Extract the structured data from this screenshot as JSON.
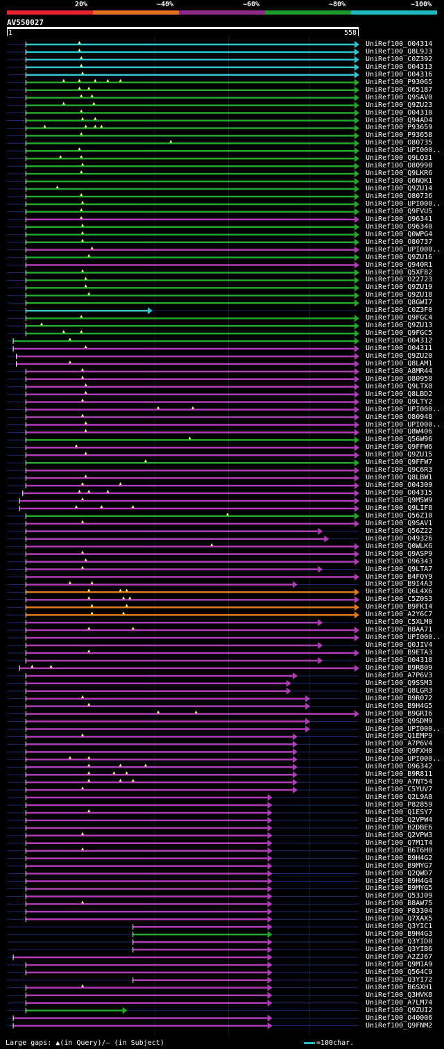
{
  "legend": {
    "segments": [
      {
        "label": "20%",
        "color": "#e8242e"
      },
      {
        "label": "~40%",
        "color": "#e0701f"
      },
      {
        "label": "~60%",
        "color": "#8e2a8c"
      },
      {
        "label": "~80%",
        "color": "#1f9a28"
      },
      {
        "label": "~100%",
        "color": "#1fb8c0"
      }
    ]
  },
  "query": {
    "name": "AV550027",
    "start": "1",
    "end": "558",
    "length": 558
  },
  "colors": {
    "cyan": "#2ec4d0",
    "green": "#22a82a",
    "purple": "#b03cb8",
    "orange": "#e07a1a",
    "faint": "#1c2a6e",
    "marker": "#ffff80"
  },
  "hits": [
    {
      "name": "UniRef100_O04314",
      "c": "cyan",
      "s": 30,
      "e": 558,
      "gaps": [
        115
      ]
    },
    {
      "name": "UniRef100_Q8L9J3",
      "c": "cyan",
      "s": 30,
      "e": 558,
      "gaps": [
        115
      ]
    },
    {
      "name": "UniRef100_C0Z392",
      "c": "cyan",
      "s": 30,
      "e": 558,
      "gaps": [
        118
      ]
    },
    {
      "name": "UniRef100_O04313",
      "c": "cyan",
      "s": 30,
      "e": 558,
      "gaps": [
        118
      ]
    },
    {
      "name": "UniRef100_O04316",
      "c": "cyan",
      "s": 30,
      "e": 558,
      "gaps": [
        120
      ]
    },
    {
      "name": "UniRef100_P93065",
      "c": "green",
      "s": 30,
      "e": 558,
      "gaps": [
        90,
        115,
        140,
        160,
        180
      ]
    },
    {
      "name": "UniRef100_O65187",
      "c": "green",
      "s": 30,
      "e": 558,
      "gaps": [
        115,
        130
      ]
    },
    {
      "name": "UniRef100_Q9SAV0",
      "c": "green",
      "s": 30,
      "e": 558,
      "gaps": [
        118,
        135
      ]
    },
    {
      "name": "UniRef100_Q9ZU23",
      "c": "green",
      "s": 30,
      "e": 558,
      "gaps": [
        90,
        138
      ]
    },
    {
      "name": "UniRef100_O04310",
      "c": "green",
      "s": 30,
      "e": 558,
      "gaps": [
        118
      ]
    },
    {
      "name": "UniRef100_Q94AD4",
      "c": "green",
      "s": 30,
      "e": 558,
      "gaps": [
        120,
        140
      ]
    },
    {
      "name": "UniRef100_P93659",
      "c": "green",
      "s": 30,
      "e": 558,
      "gaps": [
        60,
        125,
        140,
        150
      ]
    },
    {
      "name": "UniRef100_P93658",
      "c": "green",
      "s": 30,
      "e": 558,
      "gaps": [
        118
      ]
    },
    {
      "name": "UniRef100_O80735",
      "c": "green",
      "s": 30,
      "e": 558,
      "gaps": [
        260
      ]
    },
    {
      "name": "UniRef100_UPI000..",
      "c": "green",
      "s": 30,
      "e": 558,
      "gaps": [
        115
      ]
    },
    {
      "name": "UniRef100_Q9LQ31",
      "c": "green",
      "s": 30,
      "e": 558,
      "gaps": [
        85,
        118
      ]
    },
    {
      "name": "UniRef100_O80998",
      "c": "green",
      "s": 30,
      "e": 558,
      "gaps": [
        120
      ]
    },
    {
      "name": "UniRef100_Q9LKR6",
      "c": "green",
      "s": 30,
      "e": 558,
      "gaps": [
        118
      ]
    },
    {
      "name": "UniRef100_Q6NQK1",
      "c": "green",
      "s": 30,
      "e": 558,
      "gaps": []
    },
    {
      "name": "UniRef100_Q9ZU14",
      "c": "green",
      "s": 30,
      "e": 558,
      "gaps": [
        80
      ]
    },
    {
      "name": "UniRef100_O80736",
      "c": "green",
      "s": 30,
      "e": 558,
      "gaps": [
        118
      ]
    },
    {
      "name": "UniRef100_UPI000..",
      "c": "green",
      "s": 30,
      "e": 558,
      "gaps": [
        120
      ]
    },
    {
      "name": "UniRef100_Q9FVU5",
      "c": "green",
      "s": 30,
      "e": 558,
      "gaps": [
        118
      ]
    },
    {
      "name": "UniRef100_O96341",
      "c": "purple",
      "s": 30,
      "e": 558,
      "gaps": [
        118
      ]
    },
    {
      "name": "UniRef100_O96340",
      "c": "green",
      "s": 30,
      "e": 558,
      "gaps": [
        120
      ]
    },
    {
      "name": "UniRef100_Q0WPG4",
      "c": "green",
      "s": 30,
      "e": 558,
      "gaps": [
        120
      ]
    },
    {
      "name": "UniRef100_O80737",
      "c": "green",
      "s": 30,
      "e": 558,
      "gaps": [
        120
      ]
    },
    {
      "name": "UniRef100_UPI000..",
      "c": "purple",
      "s": 30,
      "e": 558,
      "gaps": [
        135
      ]
    },
    {
      "name": "UniRef100_Q9ZU16",
      "c": "green",
      "s": 30,
      "e": 558,
      "gaps": [
        130
      ]
    },
    {
      "name": "UniRef100_Q940R1",
      "c": "purple",
      "s": 30,
      "e": 558,
      "gaps": []
    },
    {
      "name": "UniRef100_Q5XF82",
      "c": "green",
      "s": 30,
      "e": 558,
      "gaps": [
        120
      ]
    },
    {
      "name": "UniRef100_O22723",
      "c": "green",
      "s": 30,
      "e": 558,
      "gaps": [
        125
      ]
    },
    {
      "name": "UniRef100_Q9ZU19",
      "c": "green",
      "s": 30,
      "e": 558,
      "gaps": [
        125
      ]
    },
    {
      "name": "UniRef100_Q9ZU18",
      "c": "green",
      "s": 30,
      "e": 558,
      "gaps": [
        130
      ]
    },
    {
      "name": "UniRef100_Q8GWI7",
      "c": "green",
      "s": 30,
      "e": 558,
      "gaps": []
    },
    {
      "name": "UniRef100_C0Z3F0",
      "c": "cyan",
      "s": 30,
      "e": 230,
      "gaps": []
    },
    {
      "name": "UniRef100_Q9FGC4",
      "c": "green",
      "s": 30,
      "e": 558,
      "gaps": [
        118
      ]
    },
    {
      "name": "UniRef100_Q9ZU13",
      "c": "green",
      "s": 30,
      "e": 558,
      "gaps": [
        55
      ]
    },
    {
      "name": "UniRef100_Q9FGC5",
      "c": "green",
      "s": 30,
      "e": 558,
      "gaps": [
        90,
        118
      ]
    },
    {
      "name": "UniRef100_O04312",
      "c": "green",
      "s": 10,
      "e": 558,
      "gaps": [
        100
      ]
    },
    {
      "name": "UniRef100_O04311",
      "c": "purple",
      "s": 10,
      "e": 558,
      "gaps": [
        125
      ]
    },
    {
      "name": "UniRef100_Q9ZU20",
      "c": "purple",
      "s": 15,
      "e": 558,
      "gaps": []
    },
    {
      "name": "UniRef100_Q8LAM1",
      "c": "purple",
      "s": 15,
      "e": 558,
      "gaps": [
        100
      ]
    },
    {
      "name": "UniRef100_A8MR44",
      "c": "purple",
      "s": 30,
      "e": 558,
      "gaps": [
        120
      ]
    },
    {
      "name": "UniRef100_O80950",
      "c": "purple",
      "s": 30,
      "e": 558,
      "gaps": [
        120
      ]
    },
    {
      "name": "UniRef100_Q9LTX8",
      "c": "purple",
      "s": 30,
      "e": 558,
      "gaps": [
        125
      ]
    },
    {
      "name": "UniRef100_Q8LBD2",
      "c": "purple",
      "s": 30,
      "e": 558,
      "gaps": [
        125
      ]
    },
    {
      "name": "UniRef100_Q9LTY2",
      "c": "purple",
      "s": 30,
      "e": 558,
      "gaps": [
        120
      ]
    },
    {
      "name": "UniRef100_UPI000..",
      "c": "purple",
      "s": 30,
      "e": 558,
      "gaps": [
        240,
        295
      ]
    },
    {
      "name": "UniRef100_O80948",
      "c": "purple",
      "s": 30,
      "e": 558,
      "gaps": [
        120
      ]
    },
    {
      "name": "UniRef100_UPI000..",
      "c": "purple",
      "s": 30,
      "e": 558,
      "gaps": [
        125
      ]
    },
    {
      "name": "UniRef100_Q8W406",
      "c": "purple",
      "s": 30,
      "e": 558,
      "gaps": [
        125
      ]
    },
    {
      "name": "UniRef100_Q56W96",
      "c": "green",
      "s": 30,
      "e": 558,
      "gaps": [
        290
      ]
    },
    {
      "name": "UniRef100_Q9FFW6",
      "c": "purple",
      "s": 30,
      "e": 558,
      "gaps": [
        110
      ]
    },
    {
      "name": "UniRef100_Q9ZU15",
      "c": "purple",
      "s": 30,
      "e": 558,
      "gaps": [
        125
      ]
    },
    {
      "name": "UniRef100_Q9FFW7",
      "c": "green",
      "s": 30,
      "e": 558,
      "gaps": [
        220
      ]
    },
    {
      "name": "UniRef100_Q9C6R3",
      "c": "purple",
      "s": 30,
      "e": 558,
      "gaps": []
    },
    {
      "name": "UniRef100_Q8LBW1",
      "c": "purple",
      "s": 30,
      "e": 558,
      "gaps": [
        125
      ]
    },
    {
      "name": "UniRef100_O04309",
      "c": "purple",
      "s": 30,
      "e": 558,
      "gaps": [
        120,
        180
      ]
    },
    {
      "name": "UniRef100_O04315",
      "c": "purple",
      "s": 25,
      "e": 558,
      "gaps": [
        115,
        130,
        160
      ]
    },
    {
      "name": "UniRef100_Q9M5W9",
      "c": "purple",
      "s": 20,
      "e": 558,
      "gaps": [
        120
      ]
    },
    {
      "name": "UniRef100_Q9LIF8",
      "c": "purple",
      "s": 20,
      "e": 558,
      "gaps": [
        110,
        150,
        200
      ]
    },
    {
      "name": "UniRef100_Q56Z10",
      "c": "green",
      "s": 30,
      "e": 558,
      "gaps": [
        350
      ]
    },
    {
      "name": "UniRef100_Q9SAV1",
      "c": "purple",
      "s": 30,
      "e": 558,
      "gaps": [
        120
      ]
    },
    {
      "name": "UniRef100_Q56Z22",
      "c": "purple",
      "s": 30,
      "e": 500,
      "gaps": []
    },
    {
      "name": "UniRef100_O49326",
      "c": "purple",
      "s": 30,
      "e": 510,
      "gaps": []
    },
    {
      "name": "UniRef100_Q0WLK6",
      "c": "purple",
      "s": 30,
      "e": 558,
      "gaps": [
        325
      ]
    },
    {
      "name": "UniRef100_Q9ASP9",
      "c": "purple",
      "s": 30,
      "e": 558,
      "gaps": [
        120
      ]
    },
    {
      "name": "UniRef100_O96343",
      "c": "purple",
      "s": 30,
      "e": 558,
      "gaps": [
        125
      ]
    },
    {
      "name": "UniRef100_Q9LTA7",
      "c": "purple",
      "s": 30,
      "e": 500,
      "gaps": [
        120
      ]
    },
    {
      "name": "UniRef100_B4FQY9",
      "c": "purple",
      "s": 30,
      "e": 558,
      "gaps": []
    },
    {
      "name": "UniRef100_B9I4A3",
      "c": "purple",
      "s": 30,
      "e": 460,
      "gaps": [
        100,
        135
      ]
    },
    {
      "name": "UniRef100_Q6L4X6",
      "c": "orange",
      "s": 30,
      "e": 558,
      "gaps": [
        130,
        180,
        190
      ]
    },
    {
      "name": "UniRef100_C5Z0S3",
      "c": "purple",
      "s": 30,
      "e": 558,
      "gaps": [
        130,
        185,
        195
      ]
    },
    {
      "name": "UniRef100_B9FKI4",
      "c": "orange",
      "s": 30,
      "e": 558,
      "gaps": [
        135,
        190
      ]
    },
    {
      "name": "UniRef100_A2Y6C7",
      "c": "orange",
      "s": 30,
      "e": 558,
      "gaps": [
        135,
        185
      ]
    },
    {
      "name": "UniRef100_C5XLM0",
      "c": "purple",
      "s": 30,
      "e": 500,
      "gaps": []
    },
    {
      "name": "UniRef100_B8AA71",
      "c": "purple",
      "s": 30,
      "e": 558,
      "gaps": [
        130,
        200
      ]
    },
    {
      "name": "UniRef100_UPI000..",
      "c": "purple",
      "s": 30,
      "e": 558,
      "gaps": []
    },
    {
      "name": "UniRef100_Q0JIV4",
      "c": "purple",
      "s": 30,
      "e": 500,
      "gaps": []
    },
    {
      "name": "UniRef100_B9ETA3",
      "c": "purple",
      "s": 30,
      "e": 558,
      "gaps": [
        130
      ]
    },
    {
      "name": "UniRef100_O04318",
      "c": "purple",
      "s": 30,
      "e": 500,
      "gaps": []
    },
    {
      "name": "UniRef100_B9R809",
      "c": "purple",
      "s": 20,
      "e": 558,
      "gaps": [
        40,
        70
      ]
    },
    {
      "name": "UniRef100_A7P6V3",
      "c": "purple",
      "s": 30,
      "e": 460,
      "gaps": []
    },
    {
      "name": "UniRef100_Q9SSM3",
      "c": "purple",
      "s": 30,
      "e": 450,
      "gaps": []
    },
    {
      "name": "UniRef100_Q8LGR3",
      "c": "purple",
      "s": 30,
      "e": 450,
      "gaps": []
    },
    {
      "name": "UniRef100_B9R072",
      "c": "purple",
      "s": 30,
      "e": 480,
      "gaps": [
        120
      ]
    },
    {
      "name": "UniRef100_B9H4G5",
      "c": "purple",
      "s": 30,
      "e": 480,
      "gaps": [
        130
      ]
    },
    {
      "name": "UniRef100_B9GRI6",
      "c": "purple",
      "s": 30,
      "e": 558,
      "gaps": [
        240,
        300
      ]
    },
    {
      "name": "UniRef100_Q9SDM9",
      "c": "purple",
      "s": 30,
      "e": 480,
      "gaps": []
    },
    {
      "name": "UniRef100_UPI000..",
      "c": "purple",
      "s": 30,
      "e": 480,
      "gaps": []
    },
    {
      "name": "UniRef100_Q1EMP9",
      "c": "purple",
      "s": 30,
      "e": 460,
      "gaps": [
        120
      ]
    },
    {
      "name": "UniRef100_A7P6V4",
      "c": "purple",
      "s": 30,
      "e": 460,
      "gaps": []
    },
    {
      "name": "UniRef100_Q9FXH0",
      "c": "purple",
      "s": 30,
      "e": 460,
      "gaps": []
    },
    {
      "name": "UniRef100_UPI000..",
      "c": "purple",
      "s": 30,
      "e": 460,
      "gaps": [
        100,
        130
      ]
    },
    {
      "name": "UniRef100_O96342",
      "c": "purple",
      "s": 30,
      "e": 460,
      "gaps": [
        130,
        180,
        220
      ]
    },
    {
      "name": "UniRef100_B9R811",
      "c": "purple",
      "s": 30,
      "e": 460,
      "gaps": [
        130,
        170,
        190
      ]
    },
    {
      "name": "UniRef100_A7NT54",
      "c": "purple",
      "s": 30,
      "e": 460,
      "gaps": [
        130,
        180,
        200
      ]
    },
    {
      "name": "UniRef100_C5YUV7",
      "c": "purple",
      "s": 30,
      "e": 460,
      "gaps": [
        120
      ]
    },
    {
      "name": "UniRef100_Q2L9A8",
      "c": "purple",
      "s": 30,
      "e": 420,
      "gaps": []
    },
    {
      "name": "UniRef100_P82859",
      "c": "purple",
      "s": 30,
      "e": 420,
      "gaps": []
    },
    {
      "name": "UniRef100_Q1ESY7",
      "c": "purple",
      "s": 30,
      "e": 420,
      "gaps": [
        130
      ]
    },
    {
      "name": "UniRef100_Q2VPW4",
      "c": "purple",
      "s": 30,
      "e": 420,
      "gaps": []
    },
    {
      "name": "UniRef100_B2DBE6",
      "c": "purple",
      "s": 30,
      "e": 420,
      "gaps": []
    },
    {
      "name": "UniRef100_Q2VPW3",
      "c": "purple",
      "s": 30,
      "e": 420,
      "gaps": [
        120
      ]
    },
    {
      "name": "UniRef100_Q7M1T4",
      "c": "purple",
      "s": 30,
      "e": 420,
      "gaps": []
    },
    {
      "name": "UniRef100_B6T6H0",
      "c": "purple",
      "s": 30,
      "e": 420,
      "gaps": [
        120
      ]
    },
    {
      "name": "UniRef100_B9H4G2",
      "c": "purple",
      "s": 30,
      "e": 420,
      "gaps": []
    },
    {
      "name": "UniRef100_B9MYG7",
      "c": "purple",
      "s": 30,
      "e": 420,
      "gaps": []
    },
    {
      "name": "UniRef100_Q2QWD7",
      "c": "purple",
      "s": 30,
      "e": 420,
      "gaps": []
    },
    {
      "name": "UniRef100_B9H4G4",
      "c": "purple",
      "s": 30,
      "e": 420,
      "gaps": []
    },
    {
      "name": "UniRef100_B9MYG5",
      "c": "purple",
      "s": 30,
      "e": 420,
      "gaps": []
    },
    {
      "name": "UniRef100_Q53J09",
      "c": "purple",
      "s": 30,
      "e": 420,
      "gaps": []
    },
    {
      "name": "UniRef100_B8AW75",
      "c": "purple",
      "s": 30,
      "e": 420,
      "gaps": [
        120
      ]
    },
    {
      "name": "UniRef100_P83304",
      "c": "purple",
      "s": 30,
      "e": 420,
      "gaps": []
    },
    {
      "name": "UniRef100_Q7XAX5",
      "c": "purple",
      "s": 30,
      "e": 420,
      "gaps": []
    },
    {
      "name": "UniRef100_Q3YIC1",
      "c": "purple",
      "s": 200,
      "e": 420,
      "gaps": []
    },
    {
      "name": "UniRef100_B9H4G3",
      "c": "green",
      "s": 200,
      "e": 420,
      "gaps": []
    },
    {
      "name": "UniRef100_Q3YID0",
      "c": "purple",
      "s": 200,
      "e": 420,
      "gaps": []
    },
    {
      "name": "UniRef100_Q3YIB6",
      "c": "purple",
      "s": 200,
      "e": 420,
      "gaps": []
    },
    {
      "name": "UniRef100_A2ZJ67",
      "c": "purple",
      "s": 10,
      "e": 420,
      "gaps": []
    },
    {
      "name": "UniRef100_Q9M1A9",
      "c": "purple",
      "s": 30,
      "e": 420,
      "gaps": []
    },
    {
      "name": "UniRef100_Q564C9",
      "c": "purple",
      "s": 30,
      "e": 420,
      "gaps": []
    },
    {
      "name": "UniRef100_Q3YI72",
      "c": "purple",
      "s": 200,
      "e": 420,
      "gaps": []
    },
    {
      "name": "UniRef100_B6SXH1",
      "c": "purple",
      "s": 30,
      "e": 420,
      "gaps": [
        120
      ]
    },
    {
      "name": "UniRef100_Q3HVK8",
      "c": "purple",
      "s": 30,
      "e": 420,
      "gaps": []
    },
    {
      "name": "UniRef100_A7LM74",
      "c": "purple",
      "s": 30,
      "e": 420,
      "gaps": []
    },
    {
      "name": "UniRef100_Q9ZUI2",
      "c": "green",
      "s": 30,
      "e": 190,
      "gaps": []
    },
    {
      "name": "UniRef100_O40006",
      "c": "purple",
      "s": 10,
      "e": 420,
      "gaps": []
    },
    {
      "name": "UniRef100_Q9FNM2",
      "c": "purple",
      "s": 10,
      "e": 420,
      "gaps": []
    }
  ],
  "footer": {
    "note": "Large gaps: ▲(in Query)/— (in Subject)",
    "scale_key": "=100char."
  }
}
